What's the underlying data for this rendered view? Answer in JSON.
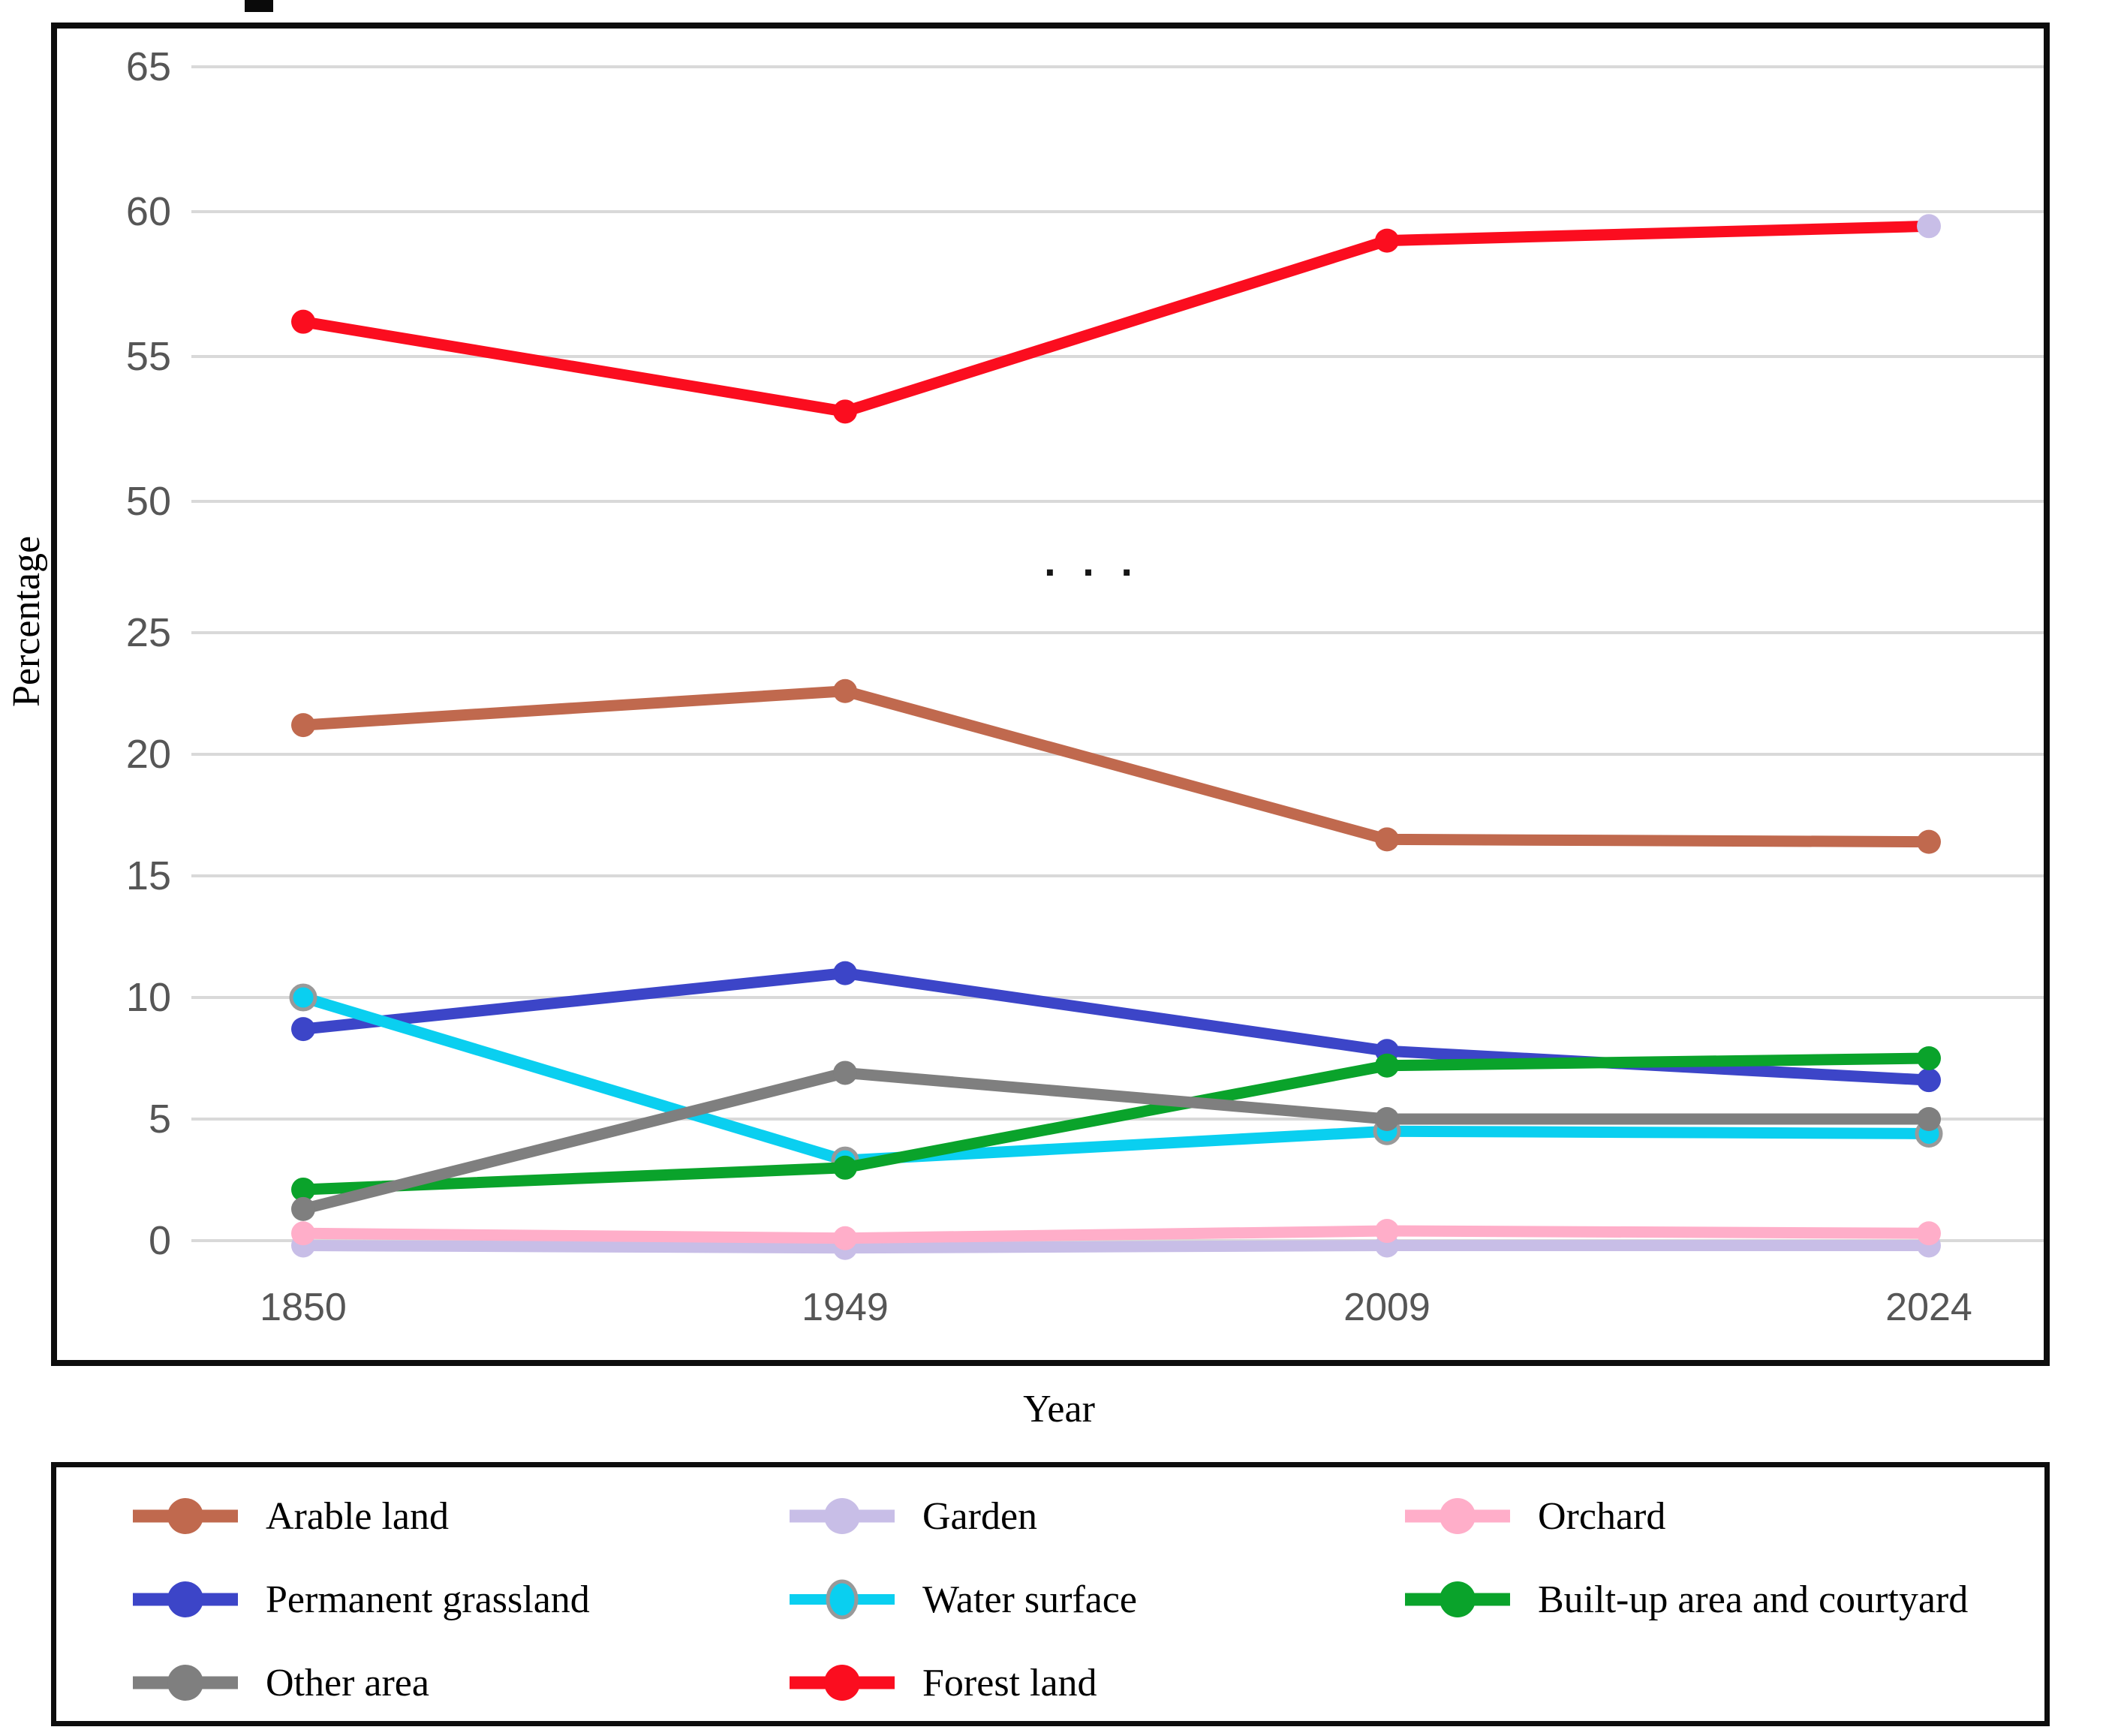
{
  "axes": {
    "y": {
      "title": "Percentage",
      "upper_ticks": [
        "65",
        "60",
        "55",
        "50"
      ],
      "lower_ticks": [
        "25",
        "20",
        "15",
        "10",
        "5",
        "0"
      ],
      "break_marker": ". . ."
    },
    "x": {
      "title": "Year",
      "ticks": [
        "1850",
        "1949",
        "2009",
        "2024"
      ]
    }
  },
  "chart_data": {
    "type": "line",
    "title": "",
    "xlabel": "Year",
    "ylabel": "Percentage",
    "x": [
      "1850",
      "1949",
      "2009",
      "2024"
    ],
    "y_axis_break": {
      "lower_range": [
        0,
        25
      ],
      "upper_range": [
        50,
        65
      ],
      "tick_step": 5,
      "grid": true,
      "break_marker": ". . ."
    },
    "legend_position": "bottom",
    "series": [
      {
        "name": "Arable land",
        "color": "#C0694E",
        "values": [
          21.2,
          22.6,
          16.5,
          16.4
        ]
      },
      {
        "name": "Garden",
        "color": "#C8BEE7",
        "values": [
          -0.2,
          -0.3,
          -0.2,
          -0.2
        ]
      },
      {
        "name": "Orchard",
        "color": "#FFAEC9",
        "values": [
          0.3,
          0.1,
          0.4,
          0.3
        ]
      },
      {
        "name": "Permanent grassland",
        "color": "#3C45C8",
        "values": [
          8.7,
          11.0,
          7.8,
          6.6
        ]
      },
      {
        "name": "Water surface",
        "color": "#0ACFF0",
        "values": [
          10.0,
          3.3,
          4.5,
          4.4
        ],
        "marker_outline": "#999999"
      },
      {
        "name": "Built-up area and courtyard",
        "color": "#0AA32B",
        "values": [
          2.1,
          3.0,
          7.2,
          7.5
        ]
      },
      {
        "name": "Other area",
        "color": "#7F7F7F",
        "values": [
          1.3,
          6.9,
          5.0,
          5.0
        ]
      },
      {
        "name": "Forest land",
        "color": "#FB0D1F",
        "values": [
          56.2,
          53.1,
          59.0,
          59.5
        ],
        "last_marker_color": "#C8BEE7"
      }
    ],
    "grid_color": "#D9D9D9",
    "tick_color": "#565656"
  },
  "legend": {
    "order": [
      0,
      1,
      2,
      3,
      4,
      5,
      6,
      7
    ]
  }
}
